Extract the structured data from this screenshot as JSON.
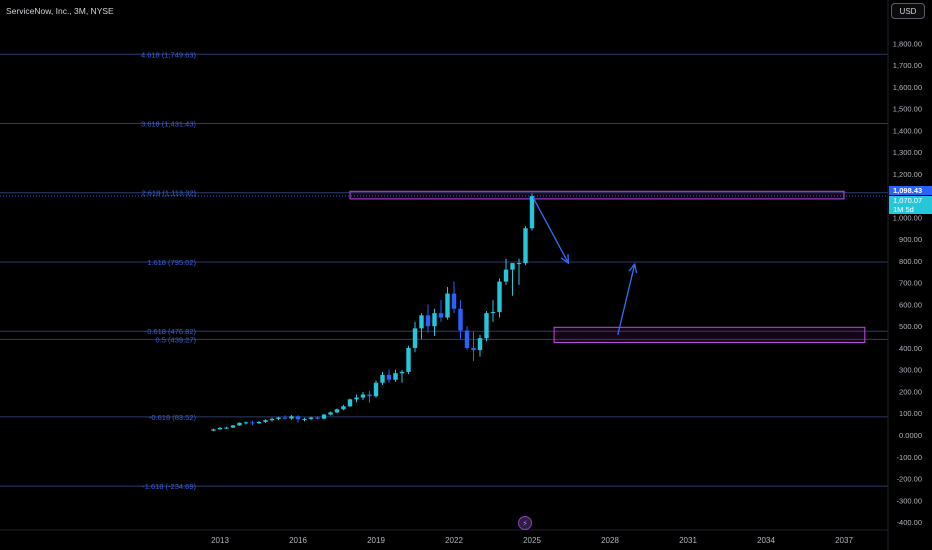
{
  "header": {
    "symbol_title": "ServiceNow, Inc., 3M, NYSE",
    "currency_button": "USD"
  },
  "price_tags": {
    "last_price": "1,098.43",
    "close_price": "1,070.07",
    "countdown": "1M 5d"
  },
  "colors": {
    "background": "#000000",
    "candle": "#26c6da",
    "fib_line": "#2d3c6e",
    "fib_label": "#3b5fd6",
    "box_border": "#c04be6",
    "arrow": "#2f6fff",
    "axis_text": "#b2b5be",
    "last_price_bg": "#2962ff",
    "close_price_bg": "#26c6da"
  },
  "chart_data": {
    "type": "candlestick",
    "title": "ServiceNow, Inc., 3M, NYSE",
    "ylim": [
      -430,
      1900
    ],
    "y_ticks": [
      "-400.00",
      "-300.00",
      "-200.00",
      "-100.00",
      "0.0000",
      "100.00",
      "200.00",
      "300.00",
      "400.00",
      "500.00",
      "600.00",
      "700.00",
      "800.00",
      "900.00",
      "1,000.00",
      "1,100.00",
      "1,200.00",
      "1,300.00",
      "1,400.00",
      "1,500.00",
      "1,600.00",
      "1,700.00",
      "1,800.00"
    ],
    "x_ticks": [
      "2013",
      "2016",
      "2019",
      "2022",
      "2025",
      "2028",
      "2031",
      "2034",
      "2037"
    ],
    "fib_levels": [
      {
        "label": "4.618 (1,749.63)",
        "value": 1749.63
      },
      {
        "label": "3.618 (1,431.43)",
        "value": 1431.43
      },
      {
        "label": "2.618 (1,113.32)",
        "value": 1113.32
      },
      {
        "label": "1.618 (795.02)",
        "value": 795.02
      },
      {
        "label": "0.618 (476.82)",
        "value": 476.82
      },
      {
        "label": "0.5 (439.27)",
        "value": 439.27
      },
      {
        "label": "-0.618 (83.52)",
        "value": 83.52
      },
      {
        "label": "-1.618 (-234.69)",
        "value": -234.69
      }
    ],
    "zones": [
      {
        "x0": 2018.0,
        "x1": 2037.0,
        "y0": 1085,
        "y1": 1120
      },
      {
        "x0": 2025.85,
        "x1": 2037.8,
        "y0": 425,
        "y1": 495
      }
    ],
    "arrows": [
      {
        "from": [
          2025.05,
          1090
        ],
        "to": [
          2026.4,
          790
        ]
      },
      {
        "from": [
          2028.3,
          460
        ],
        "to": [
          2028.95,
          785
        ]
      }
    ],
    "last_price": 1098.43,
    "close_price": 1070.07,
    "candles": [
      {
        "t": 2012.75,
        "o": 20,
        "h": 30,
        "l": 18,
        "c": 26
      },
      {
        "t": 2013.0,
        "o": 26,
        "h": 36,
        "l": 24,
        "c": 33
      },
      {
        "t": 2013.25,
        "o": 33,
        "h": 38,
        "l": 28,
        "c": 34
      },
      {
        "t": 2013.5,
        "o": 34,
        "h": 46,
        "l": 32,
        "c": 44
      },
      {
        "t": 2013.75,
        "o": 44,
        "h": 58,
        "l": 42,
        "c": 56
      },
      {
        "t": 2014.0,
        "o": 56,
        "h": 62,
        "l": 48,
        "c": 58
      },
      {
        "t": 2014.25,
        "o": 58,
        "h": 66,
        "l": 46,
        "c": 54
      },
      {
        "t": 2014.5,
        "o": 54,
        "h": 64,
        "l": 50,
        "c": 60
      },
      {
        "t": 2014.75,
        "o": 60,
        "h": 72,
        "l": 55,
        "c": 68
      },
      {
        "t": 2015.0,
        "o": 68,
        "h": 80,
        "l": 62,
        "c": 74
      },
      {
        "t": 2015.25,
        "o": 74,
        "h": 84,
        "l": 68,
        "c": 80
      },
      {
        "t": 2015.5,
        "o": 80,
        "h": 90,
        "l": 72,
        "c": 76
      },
      {
        "t": 2015.75,
        "o": 76,
        "h": 92,
        "l": 70,
        "c": 86
      },
      {
        "t": 2016.0,
        "o": 86,
        "h": 90,
        "l": 58,
        "c": 72
      },
      {
        "t": 2016.25,
        "o": 72,
        "h": 80,
        "l": 62,
        "c": 74
      },
      {
        "t": 2016.5,
        "o": 74,
        "h": 84,
        "l": 68,
        "c": 80
      },
      {
        "t": 2016.75,
        "o": 80,
        "h": 86,
        "l": 72,
        "c": 75
      },
      {
        "t": 2017.0,
        "o": 75,
        "h": 96,
        "l": 72,
        "c": 94
      },
      {
        "t": 2017.25,
        "o": 94,
        "h": 108,
        "l": 90,
        "c": 104
      },
      {
        "t": 2017.5,
        "o": 104,
        "h": 122,
        "l": 100,
        "c": 118
      },
      {
        "t": 2017.75,
        "o": 118,
        "h": 138,
        "l": 114,
        "c": 132
      },
      {
        "t": 2018.0,
        "o": 132,
        "h": 168,
        "l": 128,
        "c": 164
      },
      {
        "t": 2018.25,
        "o": 164,
        "h": 186,
        "l": 150,
        "c": 172
      },
      {
        "t": 2018.5,
        "o": 172,
        "h": 198,
        "l": 160,
        "c": 186
      },
      {
        "t": 2018.75,
        "o": 186,
        "h": 202,
        "l": 148,
        "c": 178
      },
      {
        "t": 2019.0,
        "o": 178,
        "h": 250,
        "l": 172,
        "c": 240
      },
      {
        "t": 2019.25,
        "o": 240,
        "h": 290,
        "l": 230,
        "c": 276
      },
      {
        "t": 2019.5,
        "o": 276,
        "h": 300,
        "l": 240,
        "c": 254
      },
      {
        "t": 2019.75,
        "o": 254,
        "h": 300,
        "l": 244,
        "c": 284
      },
      {
        "t": 2020.0,
        "o": 284,
        "h": 300,
        "l": 240,
        "c": 290
      },
      {
        "t": 2020.25,
        "o": 290,
        "h": 410,
        "l": 280,
        "c": 400
      },
      {
        "t": 2020.5,
        "o": 400,
        "h": 520,
        "l": 380,
        "c": 490
      },
      {
        "t": 2020.75,
        "o": 490,
        "h": 560,
        "l": 440,
        "c": 550
      },
      {
        "t": 2021.0,
        "o": 550,
        "h": 600,
        "l": 470,
        "c": 500
      },
      {
        "t": 2021.25,
        "o": 500,
        "h": 580,
        "l": 455,
        "c": 560
      },
      {
        "t": 2021.5,
        "o": 560,
        "h": 620,
        "l": 520,
        "c": 540
      },
      {
        "t": 2021.75,
        "o": 540,
        "h": 680,
        "l": 530,
        "c": 650
      },
      {
        "t": 2022.0,
        "o": 650,
        "h": 705,
        "l": 560,
        "c": 580
      },
      {
        "t": 2022.25,
        "o": 580,
        "h": 620,
        "l": 440,
        "c": 480
      },
      {
        "t": 2022.5,
        "o": 480,
        "h": 500,
        "l": 390,
        "c": 400
      },
      {
        "t": 2022.75,
        "o": 400,
        "h": 475,
        "l": 340,
        "c": 390
      },
      {
        "t": 2023.0,
        "o": 390,
        "h": 460,
        "l": 360,
        "c": 445
      },
      {
        "t": 2023.25,
        "o": 445,
        "h": 570,
        "l": 430,
        "c": 560
      },
      {
        "t": 2023.5,
        "o": 560,
        "h": 620,
        "l": 520,
        "c": 565
      },
      {
        "t": 2023.75,
        "o": 565,
        "h": 720,
        "l": 540,
        "c": 705
      },
      {
        "t": 2024.0,
        "o": 705,
        "h": 810,
        "l": 690,
        "c": 760
      },
      {
        "t": 2024.25,
        "o": 760,
        "h": 790,
        "l": 640,
        "c": 790
      },
      {
        "t": 2024.5,
        "o": 790,
        "h": 810,
        "l": 690,
        "c": 790
      },
      {
        "t": 2024.75,
        "o": 790,
        "h": 960,
        "l": 780,
        "c": 950
      },
      {
        "t": 2025.0,
        "o": 950,
        "h": 1110,
        "l": 940,
        "c": 1098
      }
    ]
  }
}
